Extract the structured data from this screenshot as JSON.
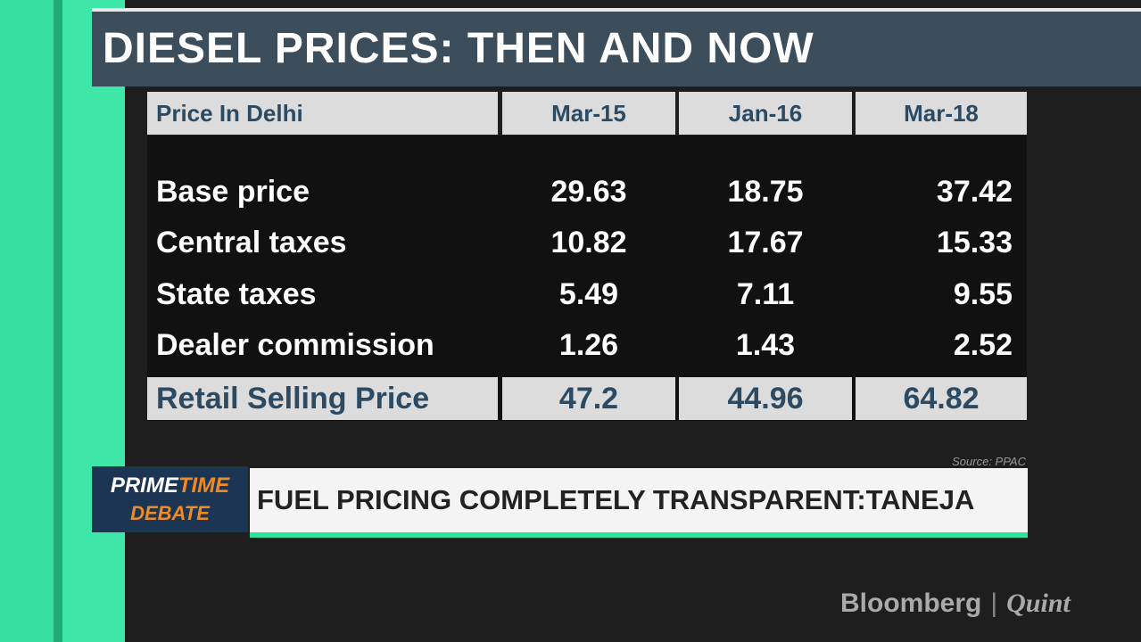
{
  "title": "DIESEL PRICES: THEN AND NOW",
  "table": {
    "header": [
      "Price In Delhi",
      "Mar-15",
      "Jan-16",
      "Mar-18"
    ],
    "rows": [
      [
        "Base price",
        "29.63",
        "18.75",
        "37.42"
      ],
      [
        "Central taxes",
        "10.82",
        "17.67",
        "15.33"
      ],
      [
        "State taxes",
        "5.49",
        "7.11",
        "9.55"
      ],
      [
        "Dealer commission",
        "1.26",
        "1.43",
        "2.52"
      ],
      [
        "Retail Selling Price",
        "47.2",
        "44.96",
        "64.82"
      ]
    ]
  },
  "source": "Source: PPAC",
  "show": {
    "prime": "PRIME",
    "time": "TIME",
    "debate": "DEBATE"
  },
  "headline": "FUEL PRICING COMPLETELY TRANSPARENT:TANEJA",
  "logo": {
    "left": "Bloomberg",
    "right": "Quint"
  }
}
